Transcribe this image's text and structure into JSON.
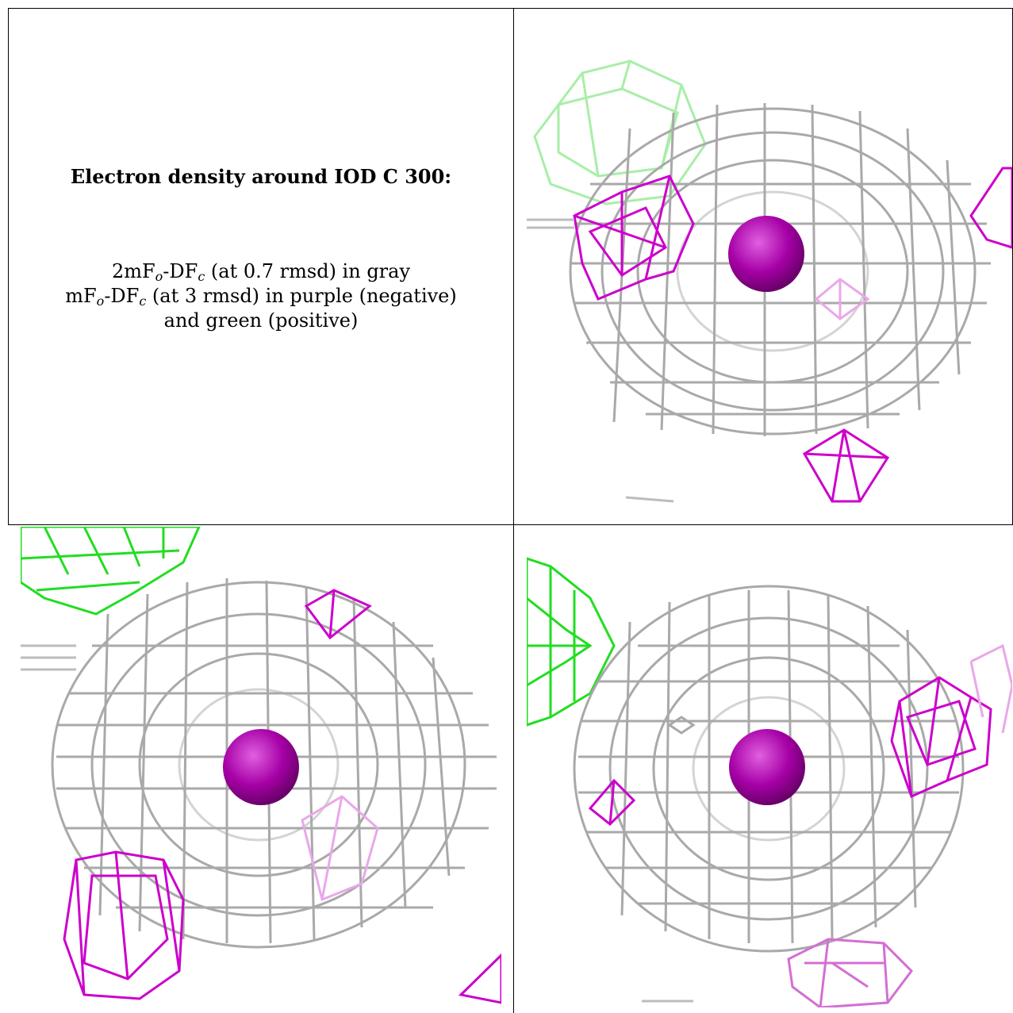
{
  "caption": {
    "title": "Electron density around IOD C 300:",
    "line1": {
      "prefix": "2mF",
      "sub1": "o",
      "mid": "-DF",
      "sub2": "c",
      "suffix": " (at 0.7 rmsd) in gray"
    },
    "line2": {
      "prefix": "mF",
      "sub1": "o",
      "mid": "-DF",
      "sub2": "c",
      "suffix": " (at 3 rmsd) in purple (negative)"
    },
    "line3": "and green (positive)"
  },
  "colors": {
    "gray_mesh": "#9a9a9a",
    "gray_mesh_light": "#d4d4d4",
    "negative_mesh": "#cc00cc",
    "negative_mesh_faded": "#e9a8e9",
    "positive_mesh": "#22dd22",
    "positive_mesh_faded": "#a8eea8",
    "atom": "#a600a6"
  },
  "icons": [
    "electron-density-mesh-icon",
    "iodine-atom-icon"
  ]
}
